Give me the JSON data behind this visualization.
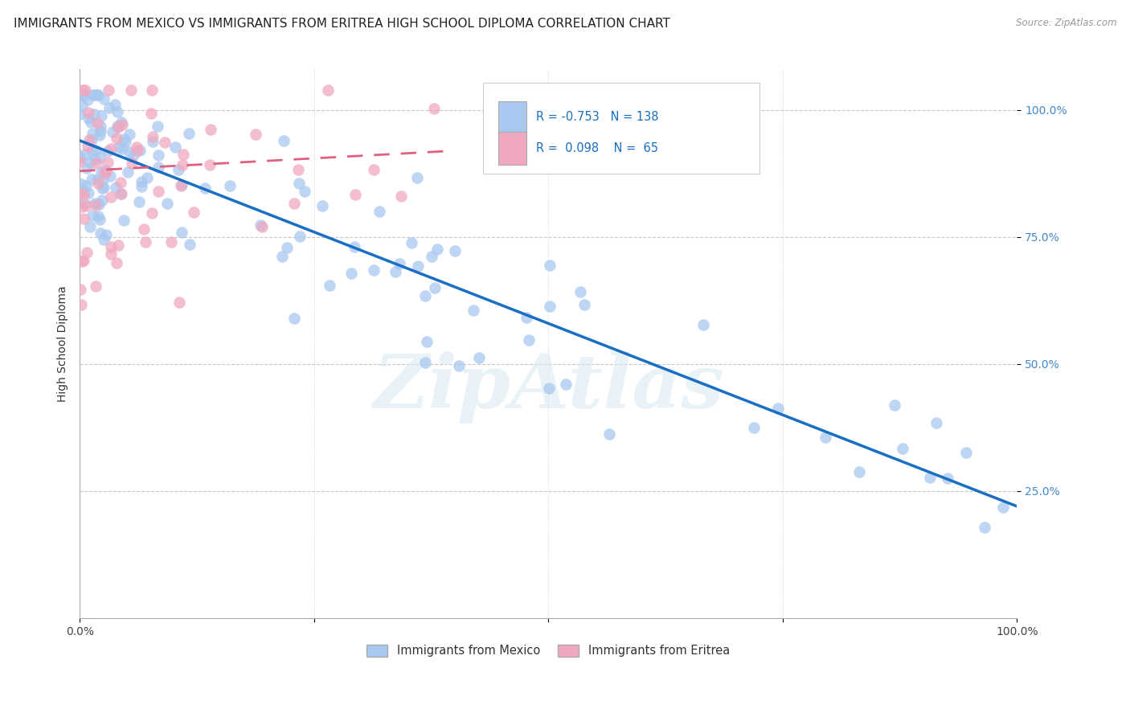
{
  "title": "IMMIGRANTS FROM MEXICO VS IMMIGRANTS FROM ERITREA HIGH SCHOOL DIPLOMA CORRELATION CHART",
  "source": "Source: ZipAtlas.com",
  "ylabel": "High School Diploma",
  "ytick_labels": [
    "100.0%",
    "75.0%",
    "50.0%",
    "25.0%"
  ],
  "ytick_values": [
    1.0,
    0.75,
    0.5,
    0.25
  ],
  "xlim": [
    0.0,
    1.0
  ],
  "ylim": [
    0.0,
    1.08
  ],
  "mexico_R": -0.753,
  "mexico_N": 138,
  "eritrea_R": 0.098,
  "eritrea_N": 65,
  "mexico_color": "#a8c8f0",
  "eritrea_color": "#f0a8c0",
  "mexico_line_color": "#1a6fc4",
  "eritrea_line_color": "#e06080",
  "legend_mexico_label": "Immigrants from Mexico",
  "legend_eritrea_label": "Immigrants from Eritrea",
  "watermark": "ZipAtlas",
  "background_color": "#ffffff",
  "grid_color": "#c8c8c8",
  "title_fontsize": 11,
  "axis_fontsize": 9,
  "legend_fontsize": 10.5
}
